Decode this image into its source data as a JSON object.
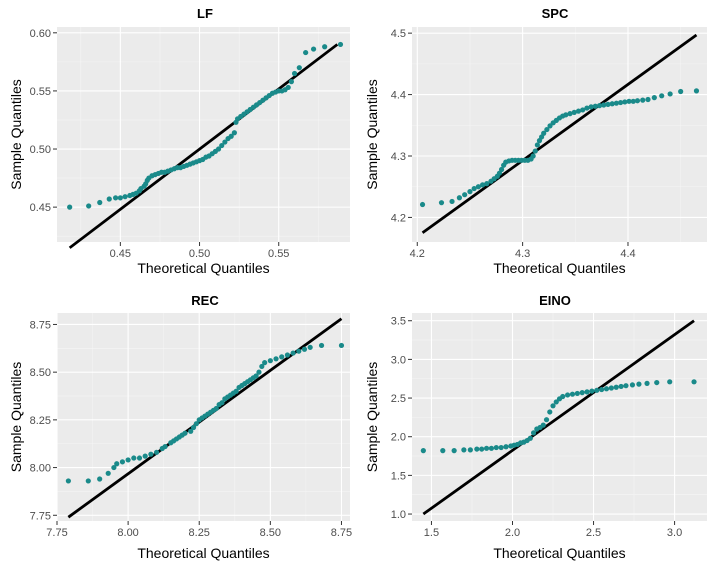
{
  "chart_data": [
    {
      "type": "scatter",
      "title": "LF",
      "xlabel": "Theoretical Quantiles",
      "ylabel": "Sample Quantiles",
      "xlim": [
        0.41,
        0.595
      ],
      "ylim": [
        0.42,
        0.605
      ],
      "xticks": [
        0.45,
        0.5,
        0.55
      ],
      "xtick_labels": [
        "0.45",
        "0.50",
        "0.55"
      ],
      "yticks": [
        0.45,
        0.5,
        0.55,
        0.6
      ],
      "ytick_labels": [
        "0.45",
        "0.50",
        "0.55",
        "0.60"
      ],
      "ref_line": [
        [
          0.418,
          0.415
        ],
        [
          0.587,
          0.59
        ]
      ],
      "color": "#1a8a8a",
      "points": [
        [
          0.418,
          0.45
        ],
        [
          0.43,
          0.451
        ],
        [
          0.437,
          0.454
        ],
        [
          0.443,
          0.457
        ],
        [
          0.447,
          0.458
        ],
        [
          0.45,
          0.458
        ],
        [
          0.453,
          0.459
        ],
        [
          0.456,
          0.46
        ],
        [
          0.458,
          0.461
        ],
        [
          0.46,
          0.462
        ],
        [
          0.462,
          0.464
        ],
        [
          0.463,
          0.466
        ],
        [
          0.465,
          0.468
        ],
        [
          0.466,
          0.47
        ],
        [
          0.467,
          0.473
        ],
        [
          0.468,
          0.475
        ],
        [
          0.47,
          0.477
        ],
        [
          0.472,
          0.478
        ],
        [
          0.474,
          0.479
        ],
        [
          0.476,
          0.48
        ],
        [
          0.478,
          0.48
        ],
        [
          0.48,
          0.481
        ],
        [
          0.482,
          0.482
        ],
        [
          0.484,
          0.483
        ],
        [
          0.486,
          0.484
        ],
        [
          0.488,
          0.484
        ],
        [
          0.49,
          0.485
        ],
        [
          0.492,
          0.486
        ],
        [
          0.494,
          0.487
        ],
        [
          0.496,
          0.488
        ],
        [
          0.498,
          0.489
        ],
        [
          0.5,
          0.49
        ],
        [
          0.502,
          0.491
        ],
        [
          0.504,
          0.493
        ],
        [
          0.506,
          0.494
        ],
        [
          0.508,
          0.496
        ],
        [
          0.51,
          0.498
        ],
        [
          0.512,
          0.5
        ],
        [
          0.514,
          0.503
        ],
        [
          0.516,
          0.506
        ],
        [
          0.518,
          0.509
        ],
        [
          0.52,
          0.511
        ],
        [
          0.522,
          0.514
        ],
        [
          0.523,
          0.523
        ],
        [
          0.524,
          0.526
        ],
        [
          0.526,
          0.528
        ],
        [
          0.528,
          0.53
        ],
        [
          0.53,
          0.532
        ],
        [
          0.532,
          0.534
        ],
        [
          0.534,
          0.536
        ],
        [
          0.536,
          0.538
        ],
        [
          0.538,
          0.54
        ],
        [
          0.54,
          0.542
        ],
        [
          0.542,
          0.544
        ],
        [
          0.544,
          0.546
        ],
        [
          0.546,
          0.548
        ],
        [
          0.548,
          0.549
        ],
        [
          0.55,
          0.55
        ],
        [
          0.552,
          0.55
        ],
        [
          0.554,
          0.551
        ],
        [
          0.556,
          0.553
        ],
        [
          0.558,
          0.558
        ],
        [
          0.56,
          0.565
        ],
        [
          0.563,
          0.57
        ],
        [
          0.567,
          0.583
        ],
        [
          0.572,
          0.586
        ],
        [
          0.579,
          0.588
        ],
        [
          0.589,
          0.59
        ]
      ]
    },
    {
      "type": "scatter",
      "title": "SPC",
      "xlabel": "Theoretical Quantiles",
      "ylabel": "Sample Quantiles",
      "xlim": [
        4.195,
        4.475
      ],
      "ylim": [
        4.16,
        4.51
      ],
      "xticks": [
        4.2,
        4.3,
        4.4
      ],
      "xtick_labels": [
        "4.2",
        "4.3",
        "4.4"
      ],
      "yticks": [
        4.2,
        4.3,
        4.4,
        4.5
      ],
      "ytick_labels": [
        "4.2",
        "4.3",
        "4.4",
        "4.5"
      ],
      "ref_line": [
        [
          4.205,
          4.175
        ],
        [
          4.465,
          4.497
        ]
      ],
      "color": "#1a8a8a",
      "points": [
        [
          4.205,
          4.221
        ],
        [
          4.223,
          4.224
        ],
        [
          4.233,
          4.226
        ],
        [
          4.24,
          4.232
        ],
        [
          4.245,
          4.237
        ],
        [
          4.25,
          4.242
        ],
        [
          4.254,
          4.247
        ],
        [
          4.258,
          4.25
        ],
        [
          4.262,
          4.253
        ],
        [
          4.266,
          4.255
        ],
        [
          4.27,
          4.259
        ],
        [
          4.273,
          4.263
        ],
        [
          4.276,
          4.267
        ],
        [
          4.278,
          4.272
        ],
        [
          4.28,
          4.278
        ],
        [
          4.282,
          4.285
        ],
        [
          4.284,
          4.29
        ],
        [
          4.287,
          4.292
        ],
        [
          4.29,
          4.293
        ],
        [
          4.293,
          4.293
        ],
        [
          4.296,
          4.293
        ],
        [
          4.299,
          4.293
        ],
        [
          4.302,
          4.293
        ],
        [
          4.305,
          4.293
        ],
        [
          4.308,
          4.295
        ],
        [
          4.31,
          4.3
        ],
        [
          4.312,
          4.308
        ],
        [
          4.314,
          4.318
        ],
        [
          4.316,
          4.325
        ],
        [
          4.318,
          4.331
        ],
        [
          4.32,
          4.337
        ],
        [
          4.323,
          4.343
        ],
        [
          4.326,
          4.349
        ],
        [
          4.329,
          4.354
        ],
        [
          4.332,
          4.358
        ],
        [
          4.335,
          4.362
        ],
        [
          4.338,
          4.365
        ],
        [
          4.341,
          4.367
        ],
        [
          4.345,
          4.369
        ],
        [
          4.349,
          4.371
        ],
        [
          4.353,
          4.373
        ],
        [
          4.357,
          4.375
        ],
        [
          4.361,
          4.378
        ],
        [
          4.365,
          4.38
        ],
        [
          4.369,
          4.381
        ],
        [
          4.373,
          4.382
        ],
        [
          4.377,
          4.383
        ],
        [
          4.381,
          4.384
        ],
        [
          4.385,
          4.385
        ],
        [
          4.389,
          4.386
        ],
        [
          4.393,
          4.387
        ],
        [
          4.397,
          4.388
        ],
        [
          4.401,
          4.389
        ],
        [
          4.405,
          4.389
        ],
        [
          4.409,
          4.39
        ],
        [
          4.414,
          4.391
        ],
        [
          4.419,
          4.392
        ],
        [
          4.425,
          4.395
        ],
        [
          4.432,
          4.398
        ],
        [
          4.44,
          4.401
        ],
        [
          4.45,
          4.405
        ],
        [
          4.465,
          4.406
        ]
      ]
    },
    {
      "type": "scatter",
      "title": "REC",
      "xlabel": "Theoretical Quantiles",
      "ylabel": "Sample Quantiles",
      "xlim": [
        7.75,
        8.78
      ],
      "ylim": [
        7.72,
        8.81
      ],
      "xticks": [
        7.75,
        8.0,
        8.25,
        8.5,
        8.75
      ],
      "xtick_labels": [
        "7.75",
        "8.00",
        "8.25",
        "8.50",
        "8.75"
      ],
      "yticks": [
        7.75,
        8.0,
        8.25,
        8.5,
        8.75
      ],
      "ytick_labels": [
        "7.75",
        "8.00",
        "8.25",
        "8.50",
        "8.75"
      ],
      "ref_line": [
        [
          7.79,
          7.74
        ],
        [
          8.75,
          8.78
        ]
      ],
      "color": "#1a8a8a",
      "points": [
        [
          7.79,
          7.93
        ],
        [
          7.86,
          7.93
        ],
        [
          7.9,
          7.94
        ],
        [
          7.93,
          7.97
        ],
        [
          7.95,
          8.0
        ],
        [
          7.96,
          8.02
        ],
        [
          7.98,
          8.03
        ],
        [
          8.0,
          8.04
        ],
        [
          8.02,
          8.05
        ],
        [
          8.04,
          8.05
        ],
        [
          8.06,
          8.06
        ],
        [
          8.08,
          8.07
        ],
        [
          8.1,
          8.08
        ],
        [
          8.12,
          8.1
        ],
        [
          8.13,
          8.11
        ],
        [
          8.15,
          8.13
        ],
        [
          8.16,
          8.14
        ],
        [
          8.17,
          8.15
        ],
        [
          8.18,
          8.16
        ],
        [
          8.19,
          8.17
        ],
        [
          8.2,
          8.18
        ],
        [
          8.22,
          8.19
        ],
        [
          8.23,
          8.21
        ],
        [
          8.24,
          8.23
        ],
        [
          8.25,
          8.25
        ],
        [
          8.26,
          8.26
        ],
        [
          8.27,
          8.27
        ],
        [
          8.28,
          8.28
        ],
        [
          8.29,
          8.29
        ],
        [
          8.3,
          8.3
        ],
        [
          8.31,
          8.31
        ],
        [
          8.32,
          8.33
        ],
        [
          8.33,
          8.34
        ],
        [
          8.34,
          8.36
        ],
        [
          8.35,
          8.37
        ],
        [
          8.36,
          8.38
        ],
        [
          8.37,
          8.39
        ],
        [
          8.38,
          8.4
        ],
        [
          8.39,
          8.42
        ],
        [
          8.4,
          8.43
        ],
        [
          8.41,
          8.44
        ],
        [
          8.42,
          8.45
        ],
        [
          8.43,
          8.46
        ],
        [
          8.44,
          8.47
        ],
        [
          8.45,
          8.48
        ],
        [
          8.46,
          8.5
        ],
        [
          8.47,
          8.53
        ],
        [
          8.48,
          8.55
        ],
        [
          8.5,
          8.56
        ],
        [
          8.52,
          8.57
        ],
        [
          8.54,
          8.58
        ],
        [
          8.56,
          8.59
        ],
        [
          8.58,
          8.6
        ],
        [
          8.6,
          8.61
        ],
        [
          8.62,
          8.62
        ],
        [
          8.64,
          8.63
        ],
        [
          8.68,
          8.64
        ],
        [
          8.75,
          8.64
        ]
      ]
    },
    {
      "type": "scatter",
      "title": "EINO",
      "xlabel": "Theoretical Quantiles",
      "ylabel": "Sample Quantiles",
      "xlim": [
        1.38,
        3.2
      ],
      "ylim": [
        0.91,
        3.6
      ],
      "xticks": [
        1.5,
        2.0,
        2.5,
        3.0
      ],
      "xtick_labels": [
        "1.5",
        "2.0",
        "2.5",
        "3.0"
      ],
      "yticks": [
        1.0,
        1.5,
        2.0,
        2.5,
        3.0,
        3.5
      ],
      "ytick_labels": [
        "1.0",
        "1.5",
        "2.0",
        "2.5",
        "3.0",
        "3.5"
      ],
      "ref_line": [
        [
          1.45,
          1.0
        ],
        [
          3.12,
          3.5
        ]
      ],
      "color": "#1a8a8a",
      "points": [
        [
          1.45,
          1.82
        ],
        [
          1.57,
          1.82
        ],
        [
          1.64,
          1.82
        ],
        [
          1.7,
          1.83
        ],
        [
          1.74,
          1.83
        ],
        [
          1.78,
          1.84
        ],
        [
          1.81,
          1.84
        ],
        [
          1.84,
          1.85
        ],
        [
          1.87,
          1.85
        ],
        [
          1.9,
          1.86
        ],
        [
          1.93,
          1.86
        ],
        [
          1.96,
          1.87
        ],
        [
          1.99,
          1.88
        ],
        [
          2.01,
          1.89
        ],
        [
          2.03,
          1.9
        ],
        [
          2.05,
          1.92
        ],
        [
          2.07,
          1.93
        ],
        [
          2.09,
          1.95
        ],
        [
          2.11,
          1.98
        ],
        [
          2.13,
          2.05
        ],
        [
          2.15,
          2.1
        ],
        [
          2.17,
          2.12
        ],
        [
          2.19,
          2.15
        ],
        [
          2.21,
          2.22
        ],
        [
          2.23,
          2.32
        ],
        [
          2.25,
          2.4
        ],
        [
          2.27,
          2.45
        ],
        [
          2.29,
          2.49
        ],
        [
          2.31,
          2.52
        ],
        [
          2.34,
          2.54
        ],
        [
          2.37,
          2.55
        ],
        [
          2.4,
          2.56
        ],
        [
          2.43,
          2.57
        ],
        [
          2.46,
          2.58
        ],
        [
          2.49,
          2.59
        ],
        [
          2.52,
          2.6
        ],
        [
          2.55,
          2.61
        ],
        [
          2.58,
          2.62
        ],
        [
          2.61,
          2.63
        ],
        [
          2.64,
          2.64
        ],
        [
          2.67,
          2.65
        ],
        [
          2.7,
          2.66
        ],
        [
          2.74,
          2.67
        ],
        [
          2.78,
          2.68
        ],
        [
          2.83,
          2.69
        ],
        [
          2.89,
          2.7
        ],
        [
          2.97,
          2.71
        ],
        [
          3.12,
          2.71
        ]
      ]
    }
  ]
}
